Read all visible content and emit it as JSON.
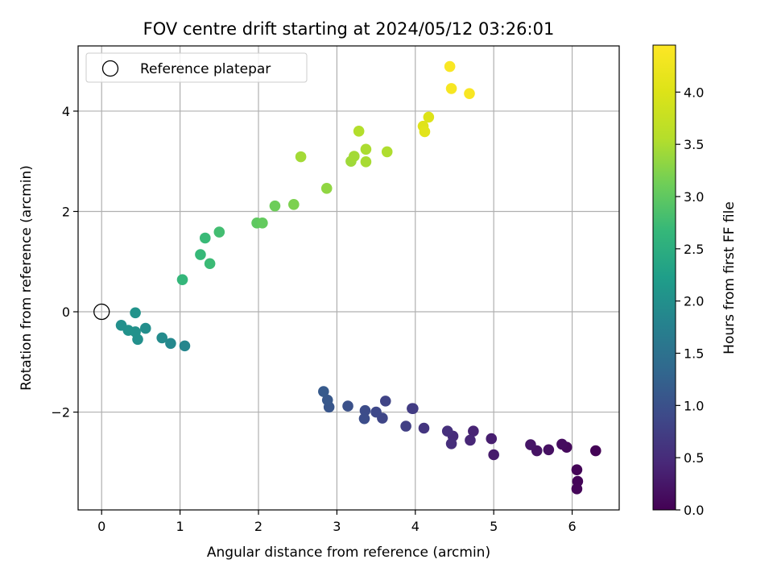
{
  "chart_data": {
    "type": "scatter",
    "title": "FOV centre drift starting at 2024/05/12 03:26:01",
    "xlabel": "Angular distance from reference (arcmin)",
    "ylabel": "Rotation from reference (arcmin)",
    "xlim": [
      -0.3,
      6.6
    ],
    "ylim": [
      -3.95,
      5.3
    ],
    "xticks": [
      0,
      1,
      2,
      3,
      4,
      5,
      6
    ],
    "yticks": [
      -2,
      0,
      2,
      4
    ],
    "xtick_labels": [
      "0",
      "1",
      "2",
      "3",
      "4",
      "5",
      "6"
    ],
    "ytick_labels": [
      "−2",
      "0",
      "2",
      "4"
    ],
    "grid": true,
    "legend": {
      "placement": "top-left",
      "entries": [
        "Reference platepar"
      ]
    },
    "reference_point": {
      "x": 0,
      "y": 0,
      "label": "Reference platepar"
    },
    "colorbar": {
      "label": "Hours from first FF file",
      "range": [
        0.0,
        4.45
      ],
      "ticks": [
        0.0,
        0.5,
        1.0,
        1.5,
        2.0,
        2.5,
        3.0,
        3.5,
        4.0
      ],
      "tick_labels": [
        "0.0",
        "0.5",
        "1.0",
        "1.5",
        "2.0",
        "2.5",
        "3.0",
        "3.5",
        "4.0"
      ],
      "colormap": "viridis"
    },
    "points": [
      {
        "x": 6.3,
        "y": -2.77,
        "c": 0.02
      },
      {
        "x": 6.06,
        "y": -3.15,
        "c": 0.04
      },
      {
        "x": 6.07,
        "y": -3.38,
        "c": 0.05
      },
      {
        "x": 6.06,
        "y": -3.53,
        "c": 0.06
      },
      {
        "x": 5.93,
        "y": -2.7,
        "c": 0.1
      },
      {
        "x": 5.87,
        "y": -2.64,
        "c": 0.13
      },
      {
        "x": 5.7,
        "y": -2.75,
        "c": 0.17
      },
      {
        "x": 5.55,
        "y": -2.77,
        "c": 0.2
      },
      {
        "x": 5.47,
        "y": -2.65,
        "c": 0.24
      },
      {
        "x": 5.0,
        "y": -2.85,
        "c": 0.3
      },
      {
        "x": 4.97,
        "y": -2.53,
        "c": 0.33
      },
      {
        "x": 4.74,
        "y": -2.38,
        "c": 0.4
      },
      {
        "x": 4.7,
        "y": -2.56,
        "c": 0.43
      },
      {
        "x": 4.48,
        "y": -2.48,
        "c": 0.5
      },
      {
        "x": 4.46,
        "y": -2.63,
        "c": 0.52
      },
      {
        "x": 4.41,
        "y": -2.38,
        "c": 0.55
      },
      {
        "x": 4.11,
        "y": -2.32,
        "c": 0.62
      },
      {
        "x": 3.97,
        "y": -1.93,
        "c": 0.7
      },
      {
        "x": 3.96,
        "y": -1.93,
        "c": 0.72
      },
      {
        "x": 3.88,
        "y": -2.28,
        "c": 0.75
      },
      {
        "x": 3.62,
        "y": -1.78,
        "c": 0.82
      },
      {
        "x": 3.58,
        "y": -2.12,
        "c": 0.85
      },
      {
        "x": 3.5,
        "y": -2.0,
        "c": 0.88
      },
      {
        "x": 3.36,
        "y": -1.97,
        "c": 0.93
      },
      {
        "x": 3.35,
        "y": -2.13,
        "c": 0.95
      },
      {
        "x": 3.14,
        "y": -1.88,
        "c": 1.0
      },
      {
        "x": 2.9,
        "y": -1.9,
        "c": 1.07
      },
      {
        "x": 2.88,
        "y": -1.76,
        "c": 1.1
      },
      {
        "x": 2.83,
        "y": -1.59,
        "c": 1.13
      },
      {
        "x": 1.06,
        "y": -0.68,
        "c": 1.85
      },
      {
        "x": 0.88,
        "y": -0.63,
        "c": 1.88
      },
      {
        "x": 0.77,
        "y": -0.52,
        "c": 1.92
      },
      {
        "x": 0.56,
        "y": -0.33,
        "c": 1.97
      },
      {
        "x": 0.46,
        "y": -0.55,
        "c": 2.0
      },
      {
        "x": 0.43,
        "y": -0.4,
        "c": 2.02
      },
      {
        "x": 0.43,
        "y": -0.02,
        "c": 2.05
      },
      {
        "x": 0.34,
        "y": -0.37,
        "c": 2.03
      },
      {
        "x": 0.25,
        "y": -0.27,
        "c": 2.0
      },
      {
        "x": 1.03,
        "y": 0.64,
        "c": 2.65
      },
      {
        "x": 1.26,
        "y": 1.14,
        "c": 2.68
      },
      {
        "x": 1.32,
        "y": 1.47,
        "c": 2.7
      },
      {
        "x": 1.38,
        "y": 0.96,
        "c": 2.72
      },
      {
        "x": 1.5,
        "y": 1.59,
        "c": 2.78
      },
      {
        "x": 1.98,
        "y": 1.77,
        "c": 3.0
      },
      {
        "x": 2.05,
        "y": 1.77,
        "c": 3.03
      },
      {
        "x": 2.21,
        "y": 2.11,
        "c": 3.1
      },
      {
        "x": 2.45,
        "y": 2.14,
        "c": 3.2
      },
      {
        "x": 2.54,
        "y": 3.09,
        "c": 3.45
      },
      {
        "x": 2.87,
        "y": 2.46,
        "c": 3.33
      },
      {
        "x": 3.18,
        "y": 3.0,
        "c": 3.42
      },
      {
        "x": 3.22,
        "y": 3.1,
        "c": 3.45
      },
      {
        "x": 3.28,
        "y": 3.6,
        "c": 3.55
      },
      {
        "x": 3.37,
        "y": 3.24,
        "c": 3.5
      },
      {
        "x": 3.37,
        "y": 2.99,
        "c": 3.48
      },
      {
        "x": 3.64,
        "y": 3.19,
        "c": 3.52
      },
      {
        "x": 4.1,
        "y": 3.7,
        "c": 4.05
      },
      {
        "x": 4.12,
        "y": 3.59,
        "c": 4.08
      },
      {
        "x": 4.17,
        "y": 3.88,
        "c": 4.0
      },
      {
        "x": 4.44,
        "y": 4.89,
        "c": 4.4
      },
      {
        "x": 4.46,
        "y": 4.45,
        "c": 4.35
      },
      {
        "x": 4.69,
        "y": 4.35,
        "c": 4.38
      }
    ]
  }
}
